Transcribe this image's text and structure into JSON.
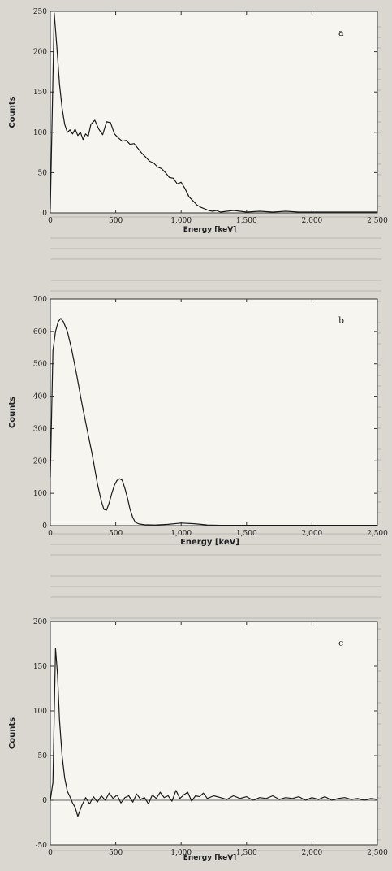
{
  "chart_data": [
    {
      "type": "line",
      "panel_label": "a",
      "xlabel": "Energy [keV]",
      "ylabel": "Counts",
      "xlim": [
        0,
        2500
      ],
      "ylim": [
        0,
        250
      ],
      "x_ticks": [
        0,
        500,
        1000,
        1500,
        2000,
        2500
      ],
      "x_tick_labels": [
        "0",
        "500",
        "1,000",
        "1,500",
        "2,000",
        "2,500"
      ],
      "y_ticks": [
        0,
        50,
        100,
        150,
        200,
        250
      ],
      "y_tick_labels": [
        "0",
        "50",
        "100",
        "150",
        "200",
        "250"
      ],
      "grid": false,
      "series": [
        {
          "x": [
            0,
            30,
            50,
            70,
            90,
            110,
            130,
            150,
            170,
            190,
            210,
            230,
            250,
            270,
            290,
            310,
            340,
            370,
            400,
            430,
            460,
            490,
            520,
            550,
            580,
            610,
            640,
            670,
            700,
            730,
            760,
            790,
            820,
            850,
            880,
            910,
            940,
            970,
            1000,
            1030,
            1060,
            1090,
            1120,
            1150,
            1180,
            1210,
            1240,
            1270,
            1300,
            1350,
            1400,
            1450,
            1500,
            1600,
            1700,
            1800,
            1900,
            2000,
            2100,
            2200,
            2300,
            2400,
            2500
          ],
          "y": [
            5,
            248,
            205,
            160,
            130,
            110,
            100,
            103,
            98,
            104,
            96,
            100,
            91,
            98,
            95,
            110,
            115,
            104,
            97,
            113,
            112,
            98,
            93,
            89,
            90,
            85,
            86,
            80,
            74,
            69,
            64,
            62,
            57,
            55,
            50,
            44,
            43,
            36,
            38,
            30,
            20,
            15,
            10,
            7,
            5,
            3,
            2,
            3,
            1,
            2,
            3,
            2,
            1,
            2,
            1,
            2,
            1,
            1,
            1,
            1,
            1,
            1,
            1
          ]
        }
      ]
    },
    {
      "type": "line",
      "panel_label": "b",
      "xlabel": "Energy [keV]",
      "ylabel": "Counts",
      "xlim": [
        0,
        2500
      ],
      "ylim": [
        0,
        700
      ],
      "x_ticks": [
        0,
        500,
        1000,
        1500,
        2000,
        2500
      ],
      "x_tick_labels": [
        "0",
        "500",
        "1,000",
        "1,500",
        "2,000",
        "2,500"
      ],
      "y_ticks": [
        0,
        100,
        200,
        300,
        400,
        500,
        600,
        700
      ],
      "y_tick_labels": [
        "0",
        "100",
        "200",
        "300",
        "400",
        "500",
        "600",
        "700"
      ],
      "grid": false,
      "series": [
        {
          "x": [
            0,
            20,
            40,
            60,
            80,
            100,
            130,
            160,
            200,
            240,
            280,
            320,
            360,
            390,
            410,
            430,
            450,
            470,
            490,
            510,
            530,
            550,
            570,
            590,
            610,
            630,
            650,
            680,
            720,
            800,
            900,
            1000,
            1100,
            1200,
            1300,
            1500,
            1800,
            2000,
            2200,
            2500
          ],
          "y": [
            150,
            540,
            600,
            630,
            640,
            630,
            600,
            550,
            470,
            380,
            300,
            220,
            130,
            75,
            50,
            48,
            70,
            100,
            125,
            140,
            145,
            140,
            115,
            85,
            50,
            25,
            10,
            5,
            3,
            2,
            4,
            8,
            6,
            2,
            1,
            1,
            1,
            1,
            1,
            1
          ]
        }
      ]
    },
    {
      "type": "line",
      "panel_label": "c",
      "xlabel": "Energy [keV]",
      "ylabel": "Counts",
      "xlim": [
        0,
        2500
      ],
      "ylim": [
        -50,
        200
      ],
      "x_ticks": [
        0,
        500,
        1000,
        1500,
        2000,
        2500
      ],
      "x_tick_labels": [
        "0",
        "500",
        "1,000",
        "1,500",
        "2,000",
        "2,500"
      ],
      "y_ticks": [
        -50,
        0,
        50,
        100,
        150,
        200
      ],
      "y_tick_labels": [
        "-50",
        "0",
        "50",
        "100",
        "150",
        "200"
      ],
      "grid": false,
      "series": [
        {
          "x": [
            0,
            20,
            40,
            55,
            70,
            90,
            110,
            130,
            150,
            170,
            190,
            210,
            240,
            270,
            300,
            330,
            360,
            390,
            420,
            450,
            480,
            510,
            540,
            570,
            600,
            630,
            660,
            690,
            720,
            750,
            780,
            810,
            840,
            870,
            900,
            930,
            960,
            990,
            1020,
            1050,
            1080,
            1110,
            1140,
            1170,
            1200,
            1250,
            1300,
            1350,
            1400,
            1450,
            1500,
            1550,
            1600,
            1650,
            1700,
            1750,
            1800,
            1850,
            1900,
            1950,
            2000,
            2050,
            2100,
            2150,
            2200,
            2250,
            2300,
            2350,
            2400,
            2450,
            2500
          ],
          "y": [
            0,
            20,
            170,
            140,
            90,
            50,
            25,
            10,
            4,
            -3,
            -8,
            -18,
            -6,
            3,
            -4,
            4,
            -2,
            5,
            0,
            8,
            2,
            6,
            -3,
            3,
            5,
            -2,
            7,
            1,
            3,
            -4,
            6,
            2,
            9,
            3,
            5,
            -1,
            11,
            2,
            6,
            9,
            -1,
            5,
            4,
            8,
            2,
            5,
            3,
            1,
            5,
            2,
            4,
            0,
            3,
            2,
            5,
            1,
            3,
            2,
            4,
            0,
            3,
            1,
            4,
            0,
            2,
            3,
            1,
            2,
            0,
            2,
            1
          ]
        }
      ]
    }
  ]
}
